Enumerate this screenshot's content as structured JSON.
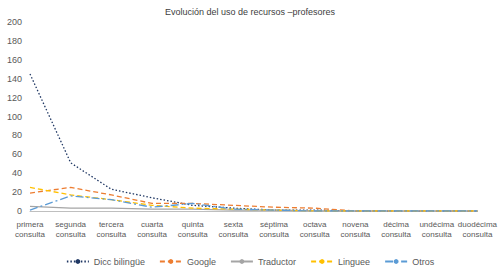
{
  "chart_data": {
    "type": "line",
    "title": "Evolución del uso de recursos –profesores",
    "categories": [
      "primera consulta",
      "segunda consulta",
      "tercera consulta",
      "cuarta consulta",
      "quinta consulta",
      "sexta consulta",
      "séptima consulta",
      "octava consulta",
      "novena consulta",
      "décima consulta",
      "undécima consulta",
      "duodécima consulta"
    ],
    "series": [
      {
        "name": "Dicc bilingüe",
        "color": "#203864",
        "line_style": "dotted",
        "values": [
          145,
          51,
          23,
          14,
          6,
          3,
          1,
          1,
          0,
          0,
          0,
          0
        ]
      },
      {
        "name": "Google",
        "color": "#ED7D31",
        "line_style": "dashed",
        "values": [
          19,
          25,
          17,
          8,
          8,
          6,
          4,
          3,
          0,
          0,
          0,
          0
        ]
      },
      {
        "name": "Traductor",
        "color": "#A5A5A5",
        "line_style": "solid",
        "values": [
          5,
          3,
          3,
          2,
          2,
          1,
          1,
          0,
          0,
          0,
          0,
          0
        ]
      },
      {
        "name": "Linguee",
        "color": "#FFC000",
        "line_style": "dashed",
        "values": [
          25,
          17,
          12,
          6,
          3,
          2,
          1,
          0,
          0,
          0,
          0,
          0
        ]
      },
      {
        "name": "Otros",
        "color": "#5B9BD5",
        "line_style": "dashdot",
        "values": [
          1,
          16,
          12,
          4,
          8,
          2,
          1,
          0,
          0,
          0,
          0,
          0
        ]
      }
    ],
    "ylim": [
      0,
      200
    ],
    "yticks": [
      0,
      20,
      40,
      60,
      80,
      100,
      120,
      140,
      160,
      180,
      200
    ],
    "grid": false,
    "legend": "bottom"
  }
}
